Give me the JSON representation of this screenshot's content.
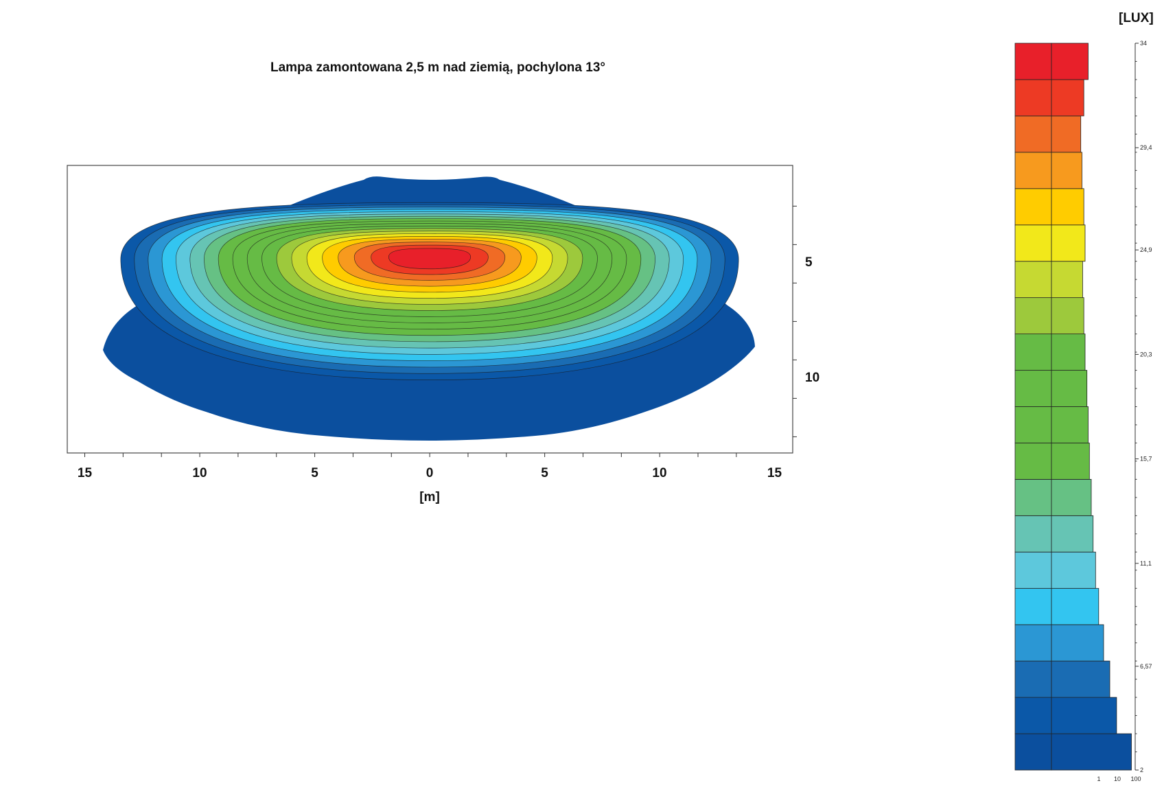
{
  "chart_data": {
    "type": "heatmap",
    "title": "Lampa zamontowana 2,5 m nad ziemią, pochylona 13°",
    "xlabel": "[m]",
    "x_ticks": [
      "15",
      "10",
      "5",
      "0",
      "5",
      "10",
      "15"
    ],
    "x_tick_values": [
      -15,
      -10,
      -5,
      0,
      5,
      10,
      15
    ],
    "y_ticks": [
      "5",
      "10"
    ],
    "y_tick_values": [
      5,
      10
    ],
    "colorbar": {
      "unit": "[LUX]",
      "tick_labels": [
        "34",
        "29,4",
        "24,9",
        "20,3",
        "15,7",
        "11,1",
        "6,57",
        "2"
      ],
      "tick_values": [
        34,
        29.4,
        24.9,
        20.3,
        15.7,
        11.1,
        6.57,
        2
      ],
      "histogram_axis_labels": [
        "1",
        "10",
        "100"
      ],
      "levels_low_to_high": [
        "#0b4f9e",
        "#0b58a8",
        "#1a6cb3",
        "#2b97d4",
        "#33c5f0",
        "#5dc8dc",
        "#66c4b4",
        "#66c184",
        "#66bb45",
        "#66bb45",
        "#66bb45",
        "#66bb45",
        "#9dc93c",
        "#c6d932",
        "#f2e81a",
        "#ffcc00",
        "#f79a1e",
        "#f06b25",
        "#ed3a24",
        "#e8202a"
      ],
      "histogram_low_to_high": [
        0.85,
        0.61,
        0.5,
        0.4,
        0.32,
        0.27,
        0.23,
        0.2,
        0.17,
        0.15,
        0.13,
        0.1,
        0.08,
        0.06,
        0.1,
        0.08,
        0.05,
        0.03,
        0.08,
        0.15
      ]
    },
    "contour_levels": 20,
    "peak_lux": 34,
    "peak_location": [
      0,
      5
    ]
  }
}
